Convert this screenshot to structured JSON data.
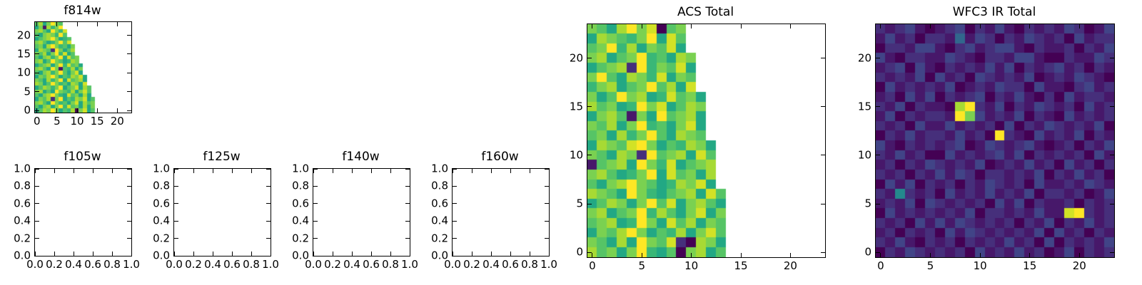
{
  "figure": {
    "background": "#ffffff",
    "colormap": "viridis",
    "colormap_anchors": [
      "#440154",
      "#414487",
      "#2a788e",
      "#22a884",
      "#7ad151",
      "#fde725"
    ],
    "cell_encoding": "hex char 0-f = intensity 0.0-1.0, '.' or missing = masked (white)"
  },
  "chart_data": [
    {
      "type": "heatmap",
      "title": "f814w",
      "colormap": "viridis",
      "n": 24,
      "xlim": [
        -0.5,
        23.5
      ],
      "ylim": [
        -0.5,
        23.5
      ],
      "xticks": {
        "values": [
          0,
          5,
          10,
          15,
          20
        ],
        "labels": [
          "0",
          "5",
          "10",
          "15",
          "20"
        ]
      },
      "yticks": {
        "values": [
          0,
          5,
          10,
          15,
          20
        ],
        "labels": [
          "0",
          "5",
          "10",
          "15",
          "20"
        ]
      },
      "rows_top_to_bottom": [
        "bd9cfcb",
        "9c1dacf",
        "cdb9fcae",
        "b9cdcafb",
        "9bcdfc9ab",
        "cdb9acfbe",
        "bc9dfcab9c",
        "9dcb2fc9bd",
        "cbd9cfae9b",
        "b9cdacf9ebc",
        "cd9bfcb9adc",
        "9bcd9cfaebc9",
        "cdb9fc1bad9c",
        "b9cdacfb9ce9",
        "9cbdfc9badce9",
        "cb9dacf9ebcd9",
        "dc9bfcab9dc9e",
        "9bdcacf9bce9db",
        "cd9b9fcbad9ceb",
        "b9cdfca9ebc9d9",
        "9cbd2cf9badce9b",
        "cdb9fcab9ce9dbc",
        "b9cd9cfaebc9d9c",
        "9bdcfc9bad0ce9b"
      ]
    },
    {
      "type": "empty",
      "title": "f105w",
      "xticks": {
        "values": [
          0,
          0.2,
          0.4,
          0.6,
          0.8,
          1
        ],
        "labels": [
          "0.0",
          "0.2",
          "0.4",
          "0.6",
          "0.8",
          "1.0"
        ]
      },
      "yticks": {
        "values": [
          0,
          0.2,
          0.4,
          0.6,
          0.8,
          1
        ],
        "labels": [
          "0.0",
          "0.2",
          "0.4",
          "0.6",
          "0.8",
          "1.0"
        ]
      }
    },
    {
      "type": "empty",
      "title": "f125w",
      "xticks": {
        "values": [
          0,
          0.2,
          0.4,
          0.6,
          0.8,
          1
        ],
        "labels": [
          "0.0",
          "0.2",
          "0.4",
          "0.6",
          "0.8",
          "1.0"
        ]
      },
      "yticks": {
        "values": [
          0,
          0.2,
          0.4,
          0.6,
          0.8,
          1
        ],
        "labels": [
          "0.0",
          "0.2",
          "0.4",
          "0.6",
          "0.8",
          "1.0"
        ]
      }
    },
    {
      "type": "empty",
      "title": "f140w",
      "xticks": {
        "values": [
          0,
          0.2,
          0.4,
          0.6,
          0.8,
          1
        ],
        "labels": [
          "0.0",
          "0.2",
          "0.4",
          "0.6",
          "0.8",
          "1.0"
        ]
      },
      "yticks": {
        "values": [
          0,
          0.2,
          0.4,
          0.6,
          0.8,
          1
        ],
        "labels": [
          "0.0",
          "0.2",
          "0.4",
          "0.6",
          "0.8",
          "1.0"
        ]
      }
    },
    {
      "type": "empty",
      "title": "f160w",
      "xticks": {
        "values": [
          0,
          0.2,
          0.4,
          0.6,
          0.8,
          1
        ],
        "labels": [
          "0.0",
          "0.2",
          "0.4",
          "0.6",
          "0.8",
          "1.0"
        ]
      },
      "yticks": {
        "values": [
          0,
          0.2,
          0.4,
          0.6,
          0.8,
          1
        ],
        "labels": [
          "0.0",
          "0.2",
          "0.4",
          "0.6",
          "0.8",
          "1.0"
        ]
      }
    },
    {
      "type": "heatmap",
      "title": "ACS Total",
      "colormap": "viridis",
      "n": 24,
      "xlim": [
        -0.5,
        23.5
      ],
      "ylim": [
        -0.5,
        23.5
      ],
      "xticks": {
        "values": [
          0,
          5,
          10,
          15,
          20
        ],
        "labels": [
          "0",
          "5",
          "10",
          "15",
          "20"
        ]
      },
      "yticks": {
        "values": [
          0,
          5,
          10,
          15,
          20
        ],
        "labels": [
          "0",
          "5",
          "10",
          "15",
          "20"
        ]
      },
      "rows_top_to_bottom": [
        "cb9dfce0bc",
        "9dcbacf9eb",
        "bcfad9cbe9",
        "cd9bcfab9dc",
        "9bcd2facbe9",
        "cfb9dcae9cb",
        "acd9bcfbd9e",
        "c9bfcd9aebc9",
        "dbc9afce9bdc",
        "9cdb1c9fbcd9",
        "cbd9cfab9ce9",
        "bc9dacfb9dcb",
        "9dcbefc9badc9",
        "cb9dc2fbcd9eb",
        "1bcd9fcae9bcd",
        "cdb9acf9ebc9d",
        "b9cdfcb9adce9",
        "dcb9fca9bcd9eb",
        "9bdc9cfbe9cdb9",
        "cd9bcfadb9ce9c",
        "bcd9afc9ebd9cb",
        "9cbdfc9bad9ceb",
        "cb9d9fcbe20dc9",
        "dbc9cfa9b0cd9b"
      ]
    },
    {
      "type": "heatmap",
      "title": "WFC3 IR Total",
      "colormap": "viridis",
      "n": 24,
      "xlim": [
        -0.5,
        23.5
      ],
      "ylim": [
        -0.5,
        23.5
      ],
      "xticks": {
        "values": [
          0,
          5,
          10,
          15,
          20
        ],
        "labels": [
          "0",
          "5",
          "10",
          "15",
          "20"
        ]
      },
      "yticks": {
        "values": [
          0,
          5,
          10,
          15,
          20
        ],
        "labels": [
          "0",
          "5",
          "10",
          "15",
          "20"
        ]
      },
      "rows_top_to_bottom": [
        "212310123021310212132013",
        "131202215132021321203122",
        "022133102312331021120213",
        "310221132102213310021132",
        "123031021213130212312021",
        "212130312032121301213210",
        "031212130121322031102312",
        "120313021230213102031221",
        "21302110df21302132120312",
        "13021221fc31213021031212",
        "212031131212030213212130",
        "021312213120f21031213021",
        "310212123013212310120213",
        "213120031212313021212031",
        "120213212130121312031202",
        "212021313202212130213120",
        "031302120213212031121321",
        "217212031213121302212013",
        "121303212120313021120212",
        "0312121213022121311ef212",
        "212031313212120213021312",
        "120212031321212130312021",
        "213102120212131203021213",
        "021321212031213120130212"
      ]
    }
  ]
}
